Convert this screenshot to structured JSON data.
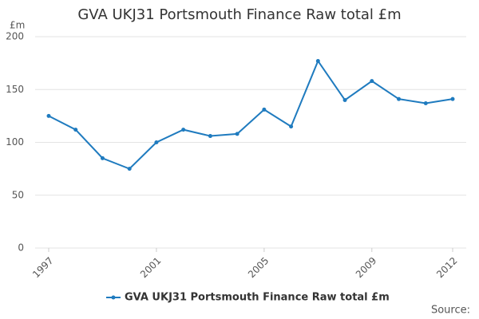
{
  "chart_data": {
    "type": "line",
    "title": "GVA UKJ31 Portsmouth Finance Raw total £m",
    "y_label": "£m",
    "x": [
      1997,
      1998,
      1999,
      2000,
      2001,
      2002,
      2003,
      2004,
      2005,
      2006,
      2007,
      2008,
      2009,
      2010,
      2011,
      2012
    ],
    "series": [
      {
        "name": "GVA UKJ31 Portsmouth Finance Raw total £m",
        "color": "#1f7bbf",
        "values": [
          125,
          112,
          85,
          75,
          100,
          112,
          106,
          108,
          131,
          115,
          177,
          140,
          158,
          141,
          137,
          141
        ]
      }
    ],
    "xlim": [
      1997,
      2012
    ],
    "xticks": [
      1997,
      2001,
      2005,
      2009,
      2012
    ],
    "ylim": [
      0,
      200
    ],
    "yticks": [
      0,
      50,
      100,
      150,
      200
    ],
    "grid": true,
    "source": "Source:"
  }
}
